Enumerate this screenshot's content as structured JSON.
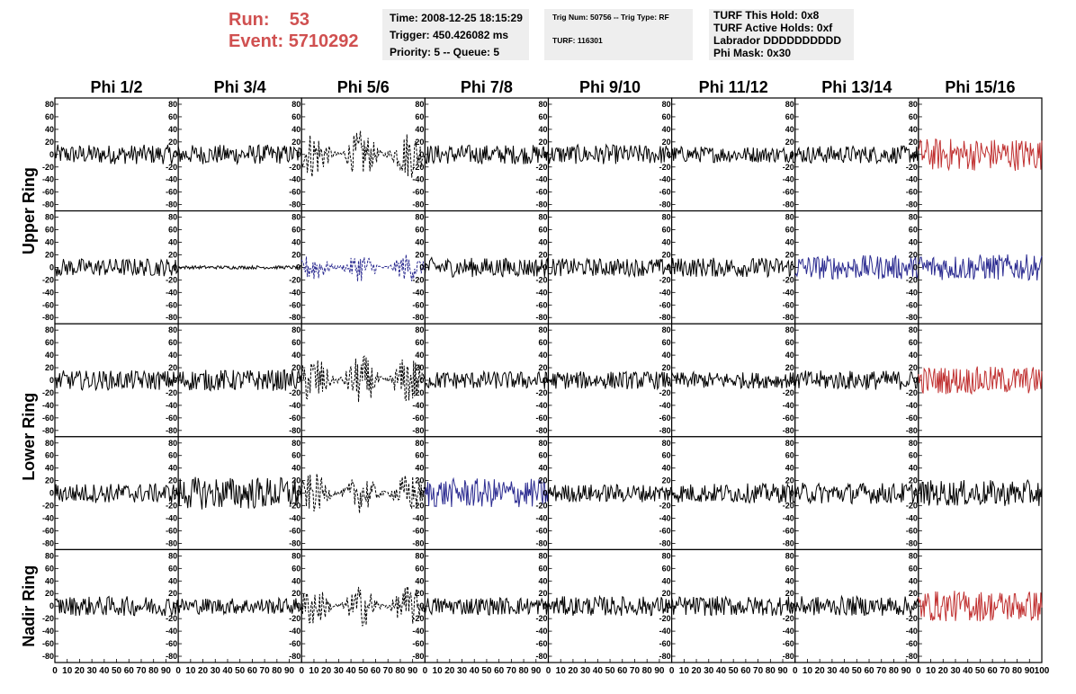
{
  "header": {
    "run_label": "Run:",
    "run_value": "53",
    "event_label": "Event:",
    "event_value": "5710292",
    "time": "Time: 2008-12-25 18:15:29",
    "trigger": "Trigger: 450.426082 ms",
    "priority": "Priority: 5 -- Queue: 5",
    "trig_num": "Trig Num: 50756 -- Trig Type: RF",
    "turf": "TURF: 116301",
    "turf_hold": "TURF This Hold: 0x8",
    "turf_active": "TURF Active Holds: 0xf",
    "labrador": "Labrador DDDDDDDDDD",
    "phi_mask": "Phi Mask: 0x30"
  },
  "chart_data": {
    "type": "line",
    "columns": [
      "Phi 1/2",
      "Phi 3/4",
      "Phi 5/6",
      "Phi 7/8",
      "Phi 9/10",
      "Phi 11/12",
      "Phi 13/14",
      "Phi 15/16"
    ],
    "rings": [
      "Upper Ring",
      "Lower Ring",
      "Nadir Ring"
    ],
    "ylim": [
      -90,
      90
    ],
    "yticks": [
      80,
      60,
      40,
      20,
      0,
      -20,
      -40,
      -60,
      -80
    ],
    "xlim": [
      0,
      100
    ],
    "xticks": [
      0,
      10,
      20,
      30,
      40,
      50,
      60,
      70,
      80,
      90,
      100
    ],
    "colors": {
      "black": "#000000",
      "red": "#c03030",
      "blue": "#2a2a90"
    },
    "rows": [
      [
        {
          "color": "black",
          "dashed": false,
          "amp": 12
        },
        {
          "color": "black",
          "dashed": false,
          "amp": 12
        },
        {
          "color": "black",
          "dashed": true,
          "amp": 30
        },
        {
          "color": "black",
          "dashed": false,
          "amp": 12
        },
        {
          "color": "black",
          "dashed": false,
          "amp": 12
        },
        {
          "color": "black",
          "dashed": false,
          "amp": 10
        },
        {
          "color": "black",
          "dashed": false,
          "amp": 11
        },
        {
          "color": "red",
          "dashed": false,
          "amp": 20
        }
      ],
      [
        {
          "color": "black",
          "dashed": false,
          "amp": 11
        },
        {
          "color": "black",
          "dashed": false,
          "amp": 2
        },
        {
          "color": "blue",
          "dashed": true,
          "amp": 18
        },
        {
          "color": "black",
          "dashed": false,
          "amp": 12
        },
        {
          "color": "black",
          "dashed": false,
          "amp": 11
        },
        {
          "color": "black",
          "dashed": false,
          "amp": 12
        },
        {
          "color": "blue",
          "dashed": false,
          "amp": 15
        },
        {
          "color": "blue",
          "dashed": false,
          "amp": 16
        }
      ],
      [
        {
          "color": "black",
          "dashed": false,
          "amp": 12
        },
        {
          "color": "black",
          "dashed": false,
          "amp": 13
        },
        {
          "color": "black",
          "dashed": true,
          "amp": 32
        },
        {
          "color": "black",
          "dashed": false,
          "amp": 11
        },
        {
          "color": "black",
          "dashed": false,
          "amp": 11
        },
        {
          "color": "black",
          "dashed": false,
          "amp": 10
        },
        {
          "color": "black",
          "dashed": false,
          "amp": 12
        },
        {
          "color": "red",
          "dashed": false,
          "amp": 17
        }
      ],
      [
        {
          "color": "black",
          "dashed": false,
          "amp": 12
        },
        {
          "color": "black",
          "dashed": false,
          "amp": 20
        },
        {
          "color": "black",
          "dashed": true,
          "amp": 25
        },
        {
          "color": "blue",
          "dashed": false,
          "amp": 18
        },
        {
          "color": "black",
          "dashed": false,
          "amp": 11
        },
        {
          "color": "black",
          "dashed": false,
          "amp": 12
        },
        {
          "color": "black",
          "dashed": false,
          "amp": 13
        },
        {
          "color": "black",
          "dashed": false,
          "amp": 16
        }
      ],
      [
        {
          "color": "black",
          "dashed": false,
          "amp": 12
        },
        {
          "color": "black",
          "dashed": false,
          "amp": 10
        },
        {
          "color": "black",
          "dashed": true,
          "amp": 26
        },
        {
          "color": "black",
          "dashed": false,
          "amp": 11
        },
        {
          "color": "black",
          "dashed": false,
          "amp": 12
        },
        {
          "color": "black",
          "dashed": false,
          "amp": 12
        },
        {
          "color": "black",
          "dashed": false,
          "amp": 12
        },
        {
          "color": "red",
          "dashed": false,
          "amp": 19
        }
      ]
    ]
  }
}
